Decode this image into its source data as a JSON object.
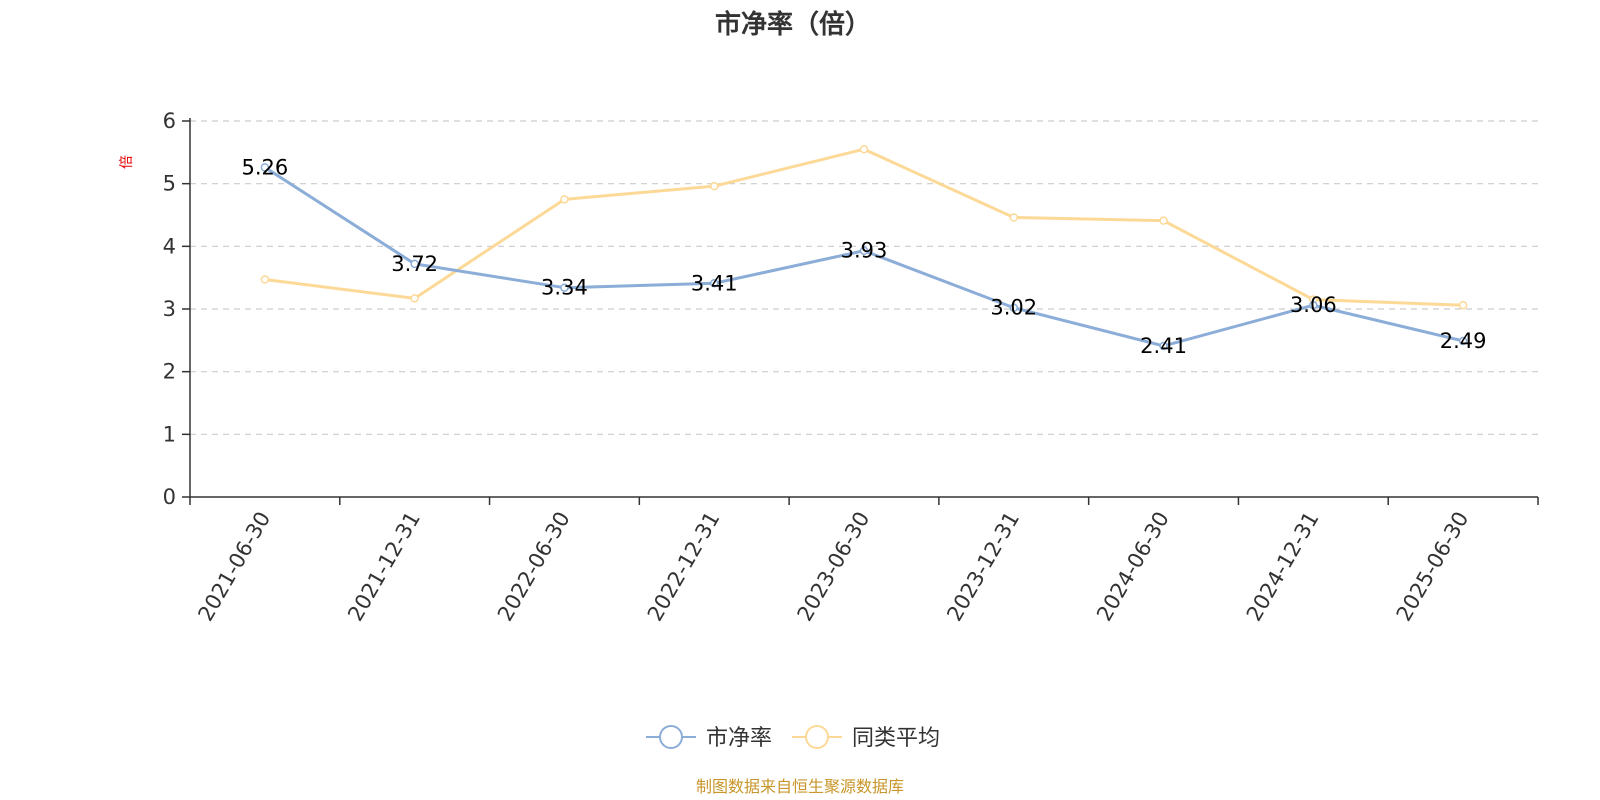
{
  "chart_data": {
    "type": "line",
    "title": "市净率（倍）",
    "ylabel": "倍",
    "categories": [
      "2021-06-30",
      "2021-12-31",
      "2022-06-30",
      "2022-12-31",
      "2023-06-30",
      "2023-12-31",
      "2024-06-30",
      "2024-12-31",
      "2025-06-30"
    ],
    "ylim": [
      0,
      6
    ],
    "yticks": [
      0,
      1,
      2,
      3,
      4,
      5,
      6
    ],
    "grid": true,
    "legend_position": "bottom-center",
    "series": [
      {
        "name": "市净率",
        "color": "#8badd8",
        "values": [
          5.26,
          3.72,
          3.34,
          3.41,
          3.93,
          3.02,
          2.41,
          3.06,
          2.49
        ],
        "labels": [
          "5.26",
          "3.72",
          "3.34",
          "3.41",
          "3.93",
          "3.02",
          "2.41",
          "3.06",
          "2.49"
        ]
      },
      {
        "name": "同类平均",
        "color": "#fcd997",
        "values": [
          3.47,
          3.17,
          4.75,
          4.96,
          5.55,
          4.46,
          4.41,
          3.15,
          3.06
        ]
      }
    ],
    "source": "制图数据来自恒生聚源数据库"
  }
}
